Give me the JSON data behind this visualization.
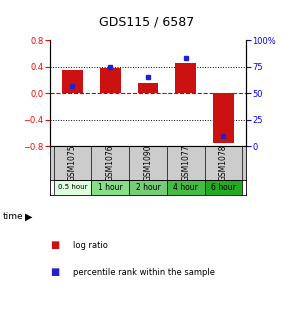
{
  "title": "GDS115 / 6587",
  "samples": [
    "GSM1075",
    "GSM1076",
    "GSM1090",
    "GSM1077",
    "GSM1078"
  ],
  "time_labels": [
    "0.5 hour",
    "1 hour",
    "2 hour",
    "4 hour",
    "6 hour"
  ],
  "time_colors": [
    "#ddffdd",
    "#88dd88",
    "#77cc77",
    "#44bb44",
    "#22aa22"
  ],
  "log_ratios": [
    0.35,
    0.38,
    0.15,
    0.45,
    -0.75
  ],
  "percentiles": [
    57,
    75,
    65,
    83,
    10
  ],
  "ylim_left": [
    -0.8,
    0.8
  ],
  "ylim_right": [
    0,
    100
  ],
  "bar_color": "#cc1111",
  "dot_color": "#2222cc",
  "background_color": "#ffffff",
  "title_fontsize": 9,
  "tick_fontsize": 6,
  "sample_bg_color": "#cccccc",
  "zero_line_color": "#cc0000"
}
